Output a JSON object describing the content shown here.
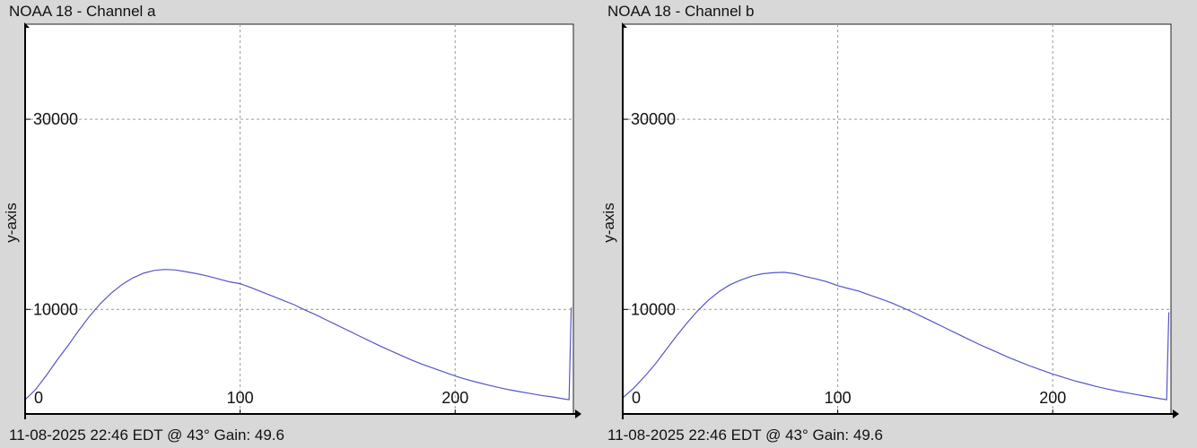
{
  "colors": {
    "background": "#d8d8d8",
    "plot_bg": "#ffffff",
    "grid": "#9a9a9a",
    "series": "#5555cc",
    "axis": "#000000"
  },
  "chart_data": [
    {
      "type": "line",
      "title": "NOAA 18 - Channel a",
      "footer": "11-08-2025 22:46 EDT @ 43° Gain: 49.6",
      "xlabel": "",
      "ylabel": "y-axis",
      "xlim": [
        0,
        255
      ],
      "ylim": [
        -1000,
        40000
      ],
      "xticks": [
        0,
        100,
        200
      ],
      "yticks": [
        10000,
        30000
      ],
      "grid": true,
      "series": [
        {
          "x": [
            0,
            5,
            10,
            15,
            20,
            25,
            30,
            35,
            40,
            45,
            50,
            55,
            60,
            65,
            70,
            75,
            80,
            85,
            90,
            95,
            100,
            105,
            110,
            115,
            120,
            125,
            130,
            135,
            140,
            145,
            150,
            155,
            160,
            165,
            170,
            175,
            180,
            185,
            190,
            195,
            200,
            205,
            210,
            215,
            220,
            225,
            230,
            235,
            240,
            245,
            250,
            253,
            254
          ],
          "y": [
            500,
            1600,
            3100,
            4700,
            6200,
            7800,
            9300,
            10600,
            11700,
            12600,
            13300,
            13800,
            14100,
            14200,
            14150,
            13950,
            13750,
            13500,
            13200,
            12900,
            12700,
            12300,
            11850,
            11400,
            10950,
            10500,
            9950,
            9450,
            8900,
            8350,
            7800,
            7250,
            6700,
            6150,
            5650,
            5150,
            4650,
            4200,
            3800,
            3400,
            3000,
            2650,
            2350,
            2050,
            1800,
            1550,
            1350,
            1150,
            950,
            800,
            600,
            500,
            10200
          ]
        }
      ]
    },
    {
      "type": "line",
      "title": "NOAA 18 - Channel b",
      "footer": "11-08-2025 22:46 EDT @ 43° Gain: 49.6",
      "xlabel": "",
      "ylabel": "y-axis",
      "xlim": [
        0,
        255
      ],
      "ylim": [
        -1000,
        40000
      ],
      "xticks": [
        0,
        100,
        200
      ],
      "yticks": [
        10000,
        30000
      ],
      "grid": true,
      "series": [
        {
          "x": [
            0,
            5,
            10,
            15,
            20,
            25,
            30,
            35,
            40,
            45,
            50,
            55,
            60,
            65,
            70,
            75,
            80,
            85,
            90,
            95,
            100,
            105,
            110,
            115,
            120,
            125,
            130,
            135,
            140,
            145,
            150,
            155,
            160,
            165,
            170,
            175,
            180,
            185,
            190,
            195,
            200,
            205,
            210,
            215,
            220,
            225,
            230,
            235,
            240,
            245,
            250,
            253,
            254
          ],
          "y": [
            700,
            1700,
            2900,
            4200,
            5700,
            7200,
            8600,
            9900,
            11000,
            11900,
            12600,
            13100,
            13500,
            13750,
            13850,
            13900,
            13750,
            13450,
            13200,
            12900,
            12500,
            12200,
            11900,
            11500,
            11100,
            10700,
            10200,
            9700,
            9150,
            8600,
            8050,
            7500,
            6950,
            6400,
            5900,
            5400,
            4900,
            4450,
            4000,
            3600,
            3200,
            2850,
            2500,
            2200,
            1900,
            1650,
            1400,
            1200,
            1000,
            800,
            600,
            500,
            9700
          ]
        }
      ]
    }
  ]
}
